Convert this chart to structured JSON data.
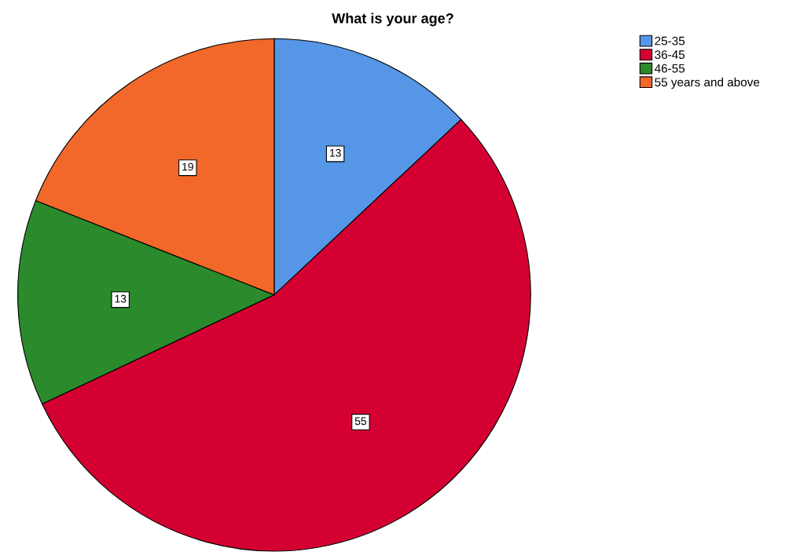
{
  "chart_data": {
    "type": "pie",
    "title": "What is your age?",
    "categories": [
      "25-35",
      "36-45",
      "46-55",
      "55 years and above"
    ],
    "values": [
      13,
      55,
      13,
      19
    ],
    "colors": [
      "#5596e6",
      "#d50032",
      "#2b8a2b",
      "#f2682a"
    ],
    "data_labels": true,
    "legend": "top right"
  }
}
